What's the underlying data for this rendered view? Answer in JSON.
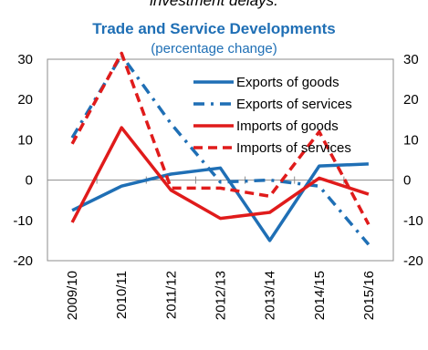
{
  "caption": "investment delays.",
  "chart_data": {
    "type": "line",
    "title": "Trade and Service Developments",
    "subtitle": "(percentage  change)",
    "categories": [
      "2009/10",
      "2010/11",
      "2011/12",
      "2012/13",
      "2013/14",
      "2014/15",
      "2015/16"
    ],
    "ylim": [
      -20,
      30
    ],
    "yticks": [
      30,
      20,
      10,
      0,
      -10,
      -20
    ],
    "ytick_labels_left": [
      "30",
      "20",
      "10",
      "0",
      "-10",
      "-20"
    ],
    "ytick_labels_right": [
      "30",
      "20",
      "10",
      "0",
      "-10",
      "-20"
    ],
    "grid": false,
    "legend_position": "top-right",
    "series": [
      {
        "name": "Exports of goods",
        "values": [
          -7.5,
          -1.5,
          1.5,
          3.0,
          -15.0,
          3.5,
          4.0
        ],
        "color": "#1f6fb5",
        "dash": "solid"
      },
      {
        "name": "Exports of services",
        "values": [
          10.5,
          31.0,
          14.0,
          -0.5,
          0.0,
          -1.5,
          -16.0
        ],
        "color": "#1f6fb5",
        "dash": "dashdot"
      },
      {
        "name": "Imports of goods",
        "values": [
          -10.5,
          13.0,
          -2.5,
          -9.5,
          -8.0,
          0.5,
          -3.5
        ],
        "color": "#e01b1b",
        "dash": "solid"
      },
      {
        "name": "Imports of services",
        "values": [
          9.0,
          31.5,
          -2.0,
          -2.0,
          -4.0,
          12.0,
          -11.0
        ],
        "color": "#e01b1b",
        "dash": "dash"
      }
    ]
  }
}
